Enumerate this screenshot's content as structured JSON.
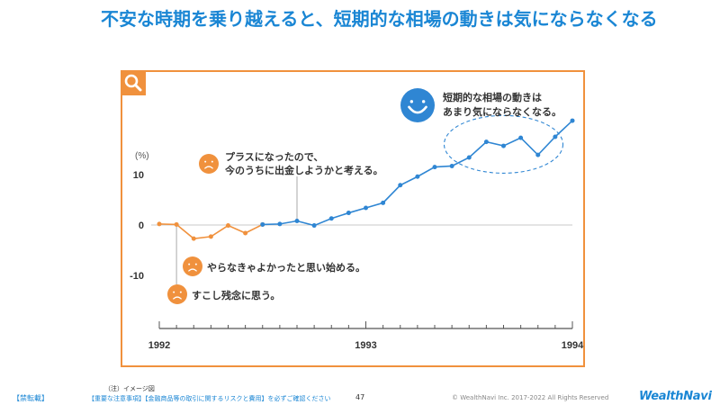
{
  "page": {
    "title": "不安な時期を乗り越えると、短期的な相場の動きは気にならなくなる"
  },
  "footer": {
    "confidential": "【禁転載】",
    "note_label": "（注）イメージ図",
    "disclaimer": "【重要な注意事項】【金融商品等の取引に関するリスクと費用】を必ずご確認ください",
    "page_number": "47",
    "copyright": "© WealthNavi Inc. 2017-2022 All Rights Reserved",
    "logo": "WealthNavi"
  },
  "icons": {
    "corner": "search-icon",
    "sad": "sad-face-icon",
    "happy": "smiling-face-icon"
  },
  "colors": {
    "title": "#1a86d4",
    "frame": "#f0913d",
    "negative_series": "#f0913d",
    "positive_series": "#2f86d3"
  },
  "chart_data": {
    "type": "line",
    "ylabel": "(%)",
    "yticks": [
      10,
      0,
      -10
    ],
    "ylim": [
      -21,
      22
    ],
    "xticks": [
      "1992",
      "1993",
      "1994"
    ],
    "xlim": [
      0,
      24
    ],
    "grid": false,
    "series": [
      {
        "color": "#f0913d",
        "x": [
          0,
          1,
          2,
          3,
          4,
          5,
          6
        ],
        "values": [
          0.2,
          0.1,
          -2.7,
          -2.3,
          -0.1,
          -1.6,
          0.1
        ]
      },
      {
        "color": "#2f86d3",
        "x": [
          6,
          7,
          8,
          9,
          10,
          11,
          12,
          13,
          14,
          15,
          16,
          17,
          18,
          19,
          20,
          21,
          22,
          23,
          24
        ],
        "values": [
          0.1,
          0.2,
          0.8,
          -0.1,
          1.3,
          2.4,
          3.4,
          4.4,
          7.9,
          9.6,
          11.5,
          11.7,
          13.4,
          16.5,
          15.7,
          17.3,
          13.9,
          17.5,
          20.7
        ]
      }
    ],
    "annotations": [
      {
        "text": "すこし残念に思う。",
        "x": 1,
        "y": 0.1,
        "sentiment": "sad"
      },
      {
        "text": "やらなきゃよかったと思い始める。",
        "x": 2,
        "y": -2.7,
        "sentiment": "sad"
      },
      {
        "text": "プラスになったので、今のうちに出金しようかと考える。",
        "lines": [
          "プラスになったので、",
          "今のうちに出金しようかと考える。"
        ],
        "x": 8,
        "y": 0.8,
        "sentiment": "sad"
      },
      {
        "text": "短期的な相場の動きはあまり気にならなくなる。",
        "lines": [
          "短期的な相場の動きは",
          "あまり気にならなくなる。"
        ],
        "x": 20,
        "y": 16,
        "sentiment": "happy"
      }
    ]
  }
}
